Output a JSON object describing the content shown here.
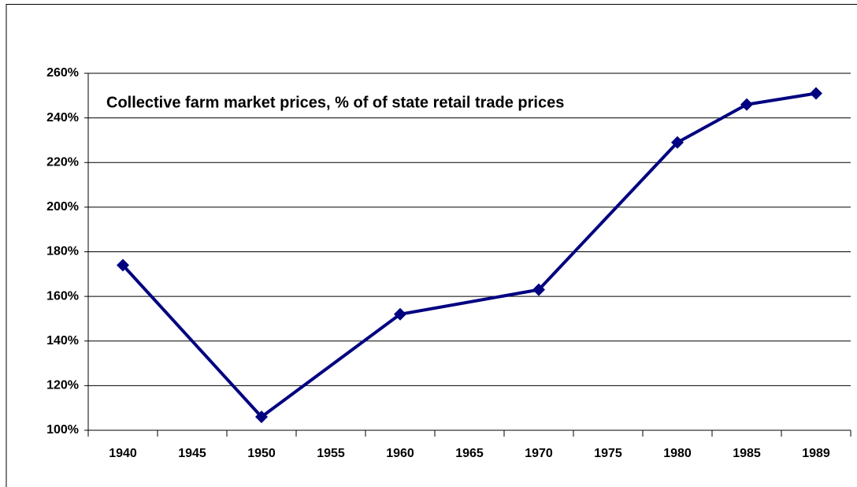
{
  "chart_data": {
    "type": "line",
    "title": "Collective farm market prices, % of of state retail trade prices",
    "categories": [
      "1940",
      "1945",
      "1950",
      "1955",
      "1960",
      "1965",
      "1970",
      "1975",
      "1980",
      "1985",
      "1989"
    ],
    "series": [
      {
        "name": "Collective farm market prices",
        "color": "#000080",
        "values": [
          174,
          null,
          106,
          null,
          152,
          null,
          163,
          null,
          229,
          246,
          251
        ]
      }
    ],
    "span_gaps": true,
    "ylim": [
      100,
      260
    ],
    "yticks": [
      {
        "value": 100,
        "label": "100%"
      },
      {
        "value": 120,
        "label": "120%"
      },
      {
        "value": 140,
        "label": "140%"
      },
      {
        "value": 160,
        "label": "160%"
      },
      {
        "value": 180,
        "label": "180%"
      },
      {
        "value": 200,
        "label": "200%"
      },
      {
        "value": 220,
        "label": "220%"
      },
      {
        "value": 240,
        "label": "240%"
      },
      {
        "value": 260,
        "label": "260%"
      }
    ],
    "grid": true
  }
}
